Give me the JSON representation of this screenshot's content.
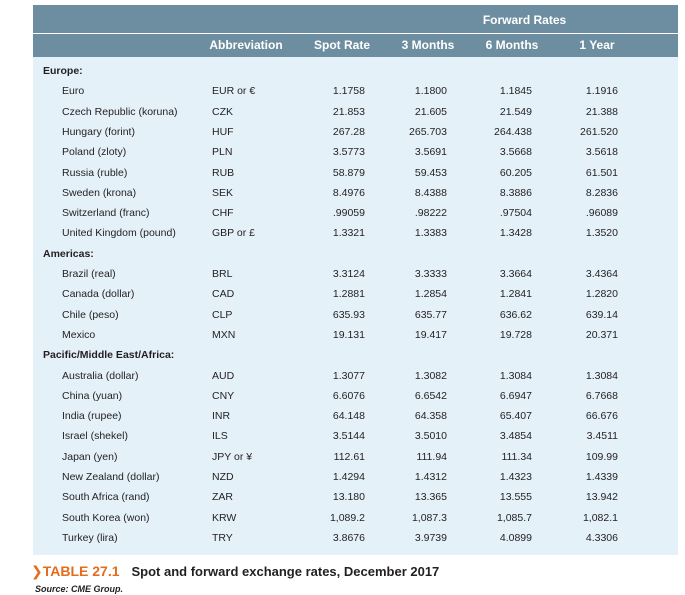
{
  "header": {
    "forward_rates": "Forward Rates",
    "abbreviation": "Abbreviation",
    "spot_rate": "Spot Rate",
    "m3": "3 Months",
    "m6": "6 Months",
    "y1": "1 Year"
  },
  "sections": [
    {
      "title": "Europe:",
      "rows": [
        {
          "name": "Euro",
          "abbr": "EUR or €",
          "spot": "1.1758",
          "m3": "1.1800",
          "m6": "1.1845",
          "y1": "1.1916"
        },
        {
          "name": "Czech Republic (koruna)",
          "abbr": "CZK",
          "spot": "21.853",
          "m3": "21.605",
          "m6": "21.549",
          "y1": "21.388"
        },
        {
          "name": "Hungary (forint)",
          "abbr": "HUF",
          "spot": "267.28",
          "m3": "265.703",
          "m6": "264.438",
          "y1": "261.520"
        },
        {
          "name": "Poland (zloty)",
          "abbr": "PLN",
          "spot": "3.5773",
          "m3": "3.5691",
          "m6": "3.5668",
          "y1": "3.5618"
        },
        {
          "name": "Russia (ruble)",
          "abbr": "RUB",
          "spot": "58.879",
          "m3": "59.453",
          "m6": "60.205",
          "y1": "61.501"
        },
        {
          "name": "Sweden (krona)",
          "abbr": "SEK",
          "spot": "8.4976",
          "m3": "8.4388",
          "m6": "8.3886",
          "y1": "8.2836"
        },
        {
          "name": "Switzerland (franc)",
          "abbr": "CHF",
          "spot": ".99059",
          "m3": ".98222",
          "m6": ".97504",
          "y1": ".96089"
        },
        {
          "name": "United Kingdom (pound)",
          "abbr": "GBP or £",
          "spot": "1.3321",
          "m3": "1.3383",
          "m6": "1.3428",
          "y1": "1.3520"
        }
      ]
    },
    {
      "title": "Americas:",
      "rows": [
        {
          "name": "Brazil (real)",
          "abbr": "BRL",
          "spot": "3.3124",
          "m3": "3.3333",
          "m6": "3.3664",
          "y1": "3.4364"
        },
        {
          "name": "Canada (dollar)",
          "abbr": "CAD",
          "spot": "1.2881",
          "m3": "1.2854",
          "m6": "1.2841",
          "y1": "1.2820"
        },
        {
          "name": "Chile (peso)",
          "abbr": "CLP",
          "spot": "635.93",
          "m3": "635.77",
          "m6": "636.62",
          "y1": "639.14"
        },
        {
          "name": "Mexico",
          "abbr": "MXN",
          "spot": "19.131",
          "m3": "19.417",
          "m6": "19.728",
          "y1": "20.371"
        }
      ]
    },
    {
      "title": "Pacific/Middle East/Africa:",
      "rows": [
        {
          "name": "Australia (dollar)",
          "abbr": "AUD",
          "spot": "1.3077",
          "m3": "1.3082",
          "m6": "1.3084",
          "y1": "1.3084"
        },
        {
          "name": "China (yuan)",
          "abbr": "CNY",
          "spot": "6.6076",
          "m3": "6.6542",
          "m6": "6.6947",
          "y1": "6.7668"
        },
        {
          "name": "India (rupee)",
          "abbr": "INR",
          "spot": "64.148",
          "m3": "64.358",
          "m6": "65.407",
          "y1": "66.676"
        },
        {
          "name": "Israel (shekel)",
          "abbr": "ILS",
          "spot": "3.5144",
          "m3": "3.5010",
          "m6": "3.4854",
          "y1": "3.4511"
        },
        {
          "name": "Japan (yen)",
          "abbr": "JPY or ¥",
          "spot": "112.61",
          "m3": "111.94",
          "m6": "111.34",
          "y1": "109.99"
        },
        {
          "name": "New Zealand (dollar)",
          "abbr": "NZD",
          "spot": "1.4294",
          "m3": "1.4312",
          "m6": "1.4323",
          "y1": "1.4339"
        },
        {
          "name": "South Africa (rand)",
          "abbr": "ZAR",
          "spot": "13.180",
          "m3": "13.365",
          "m6": "13.555",
          "y1": "13.942"
        },
        {
          "name": "South Korea (won)",
          "abbr": "KRW",
          "spot": "1,089.2",
          "m3": "1,087.3",
          "m6": "1,085.7",
          "y1": "1,082.1"
        },
        {
          "name": "Turkey (lira)",
          "abbr": "TRY",
          "spot": "3.8676",
          "m3": "3.9739",
          "m6": "4.0899",
          "y1": "4.3306"
        }
      ]
    }
  ],
  "caption": {
    "marker": "❯",
    "number": "TABLE 27.1",
    "text": "Spot and forward exchange rates, December 2017"
  },
  "source": "Source: CME Group."
}
